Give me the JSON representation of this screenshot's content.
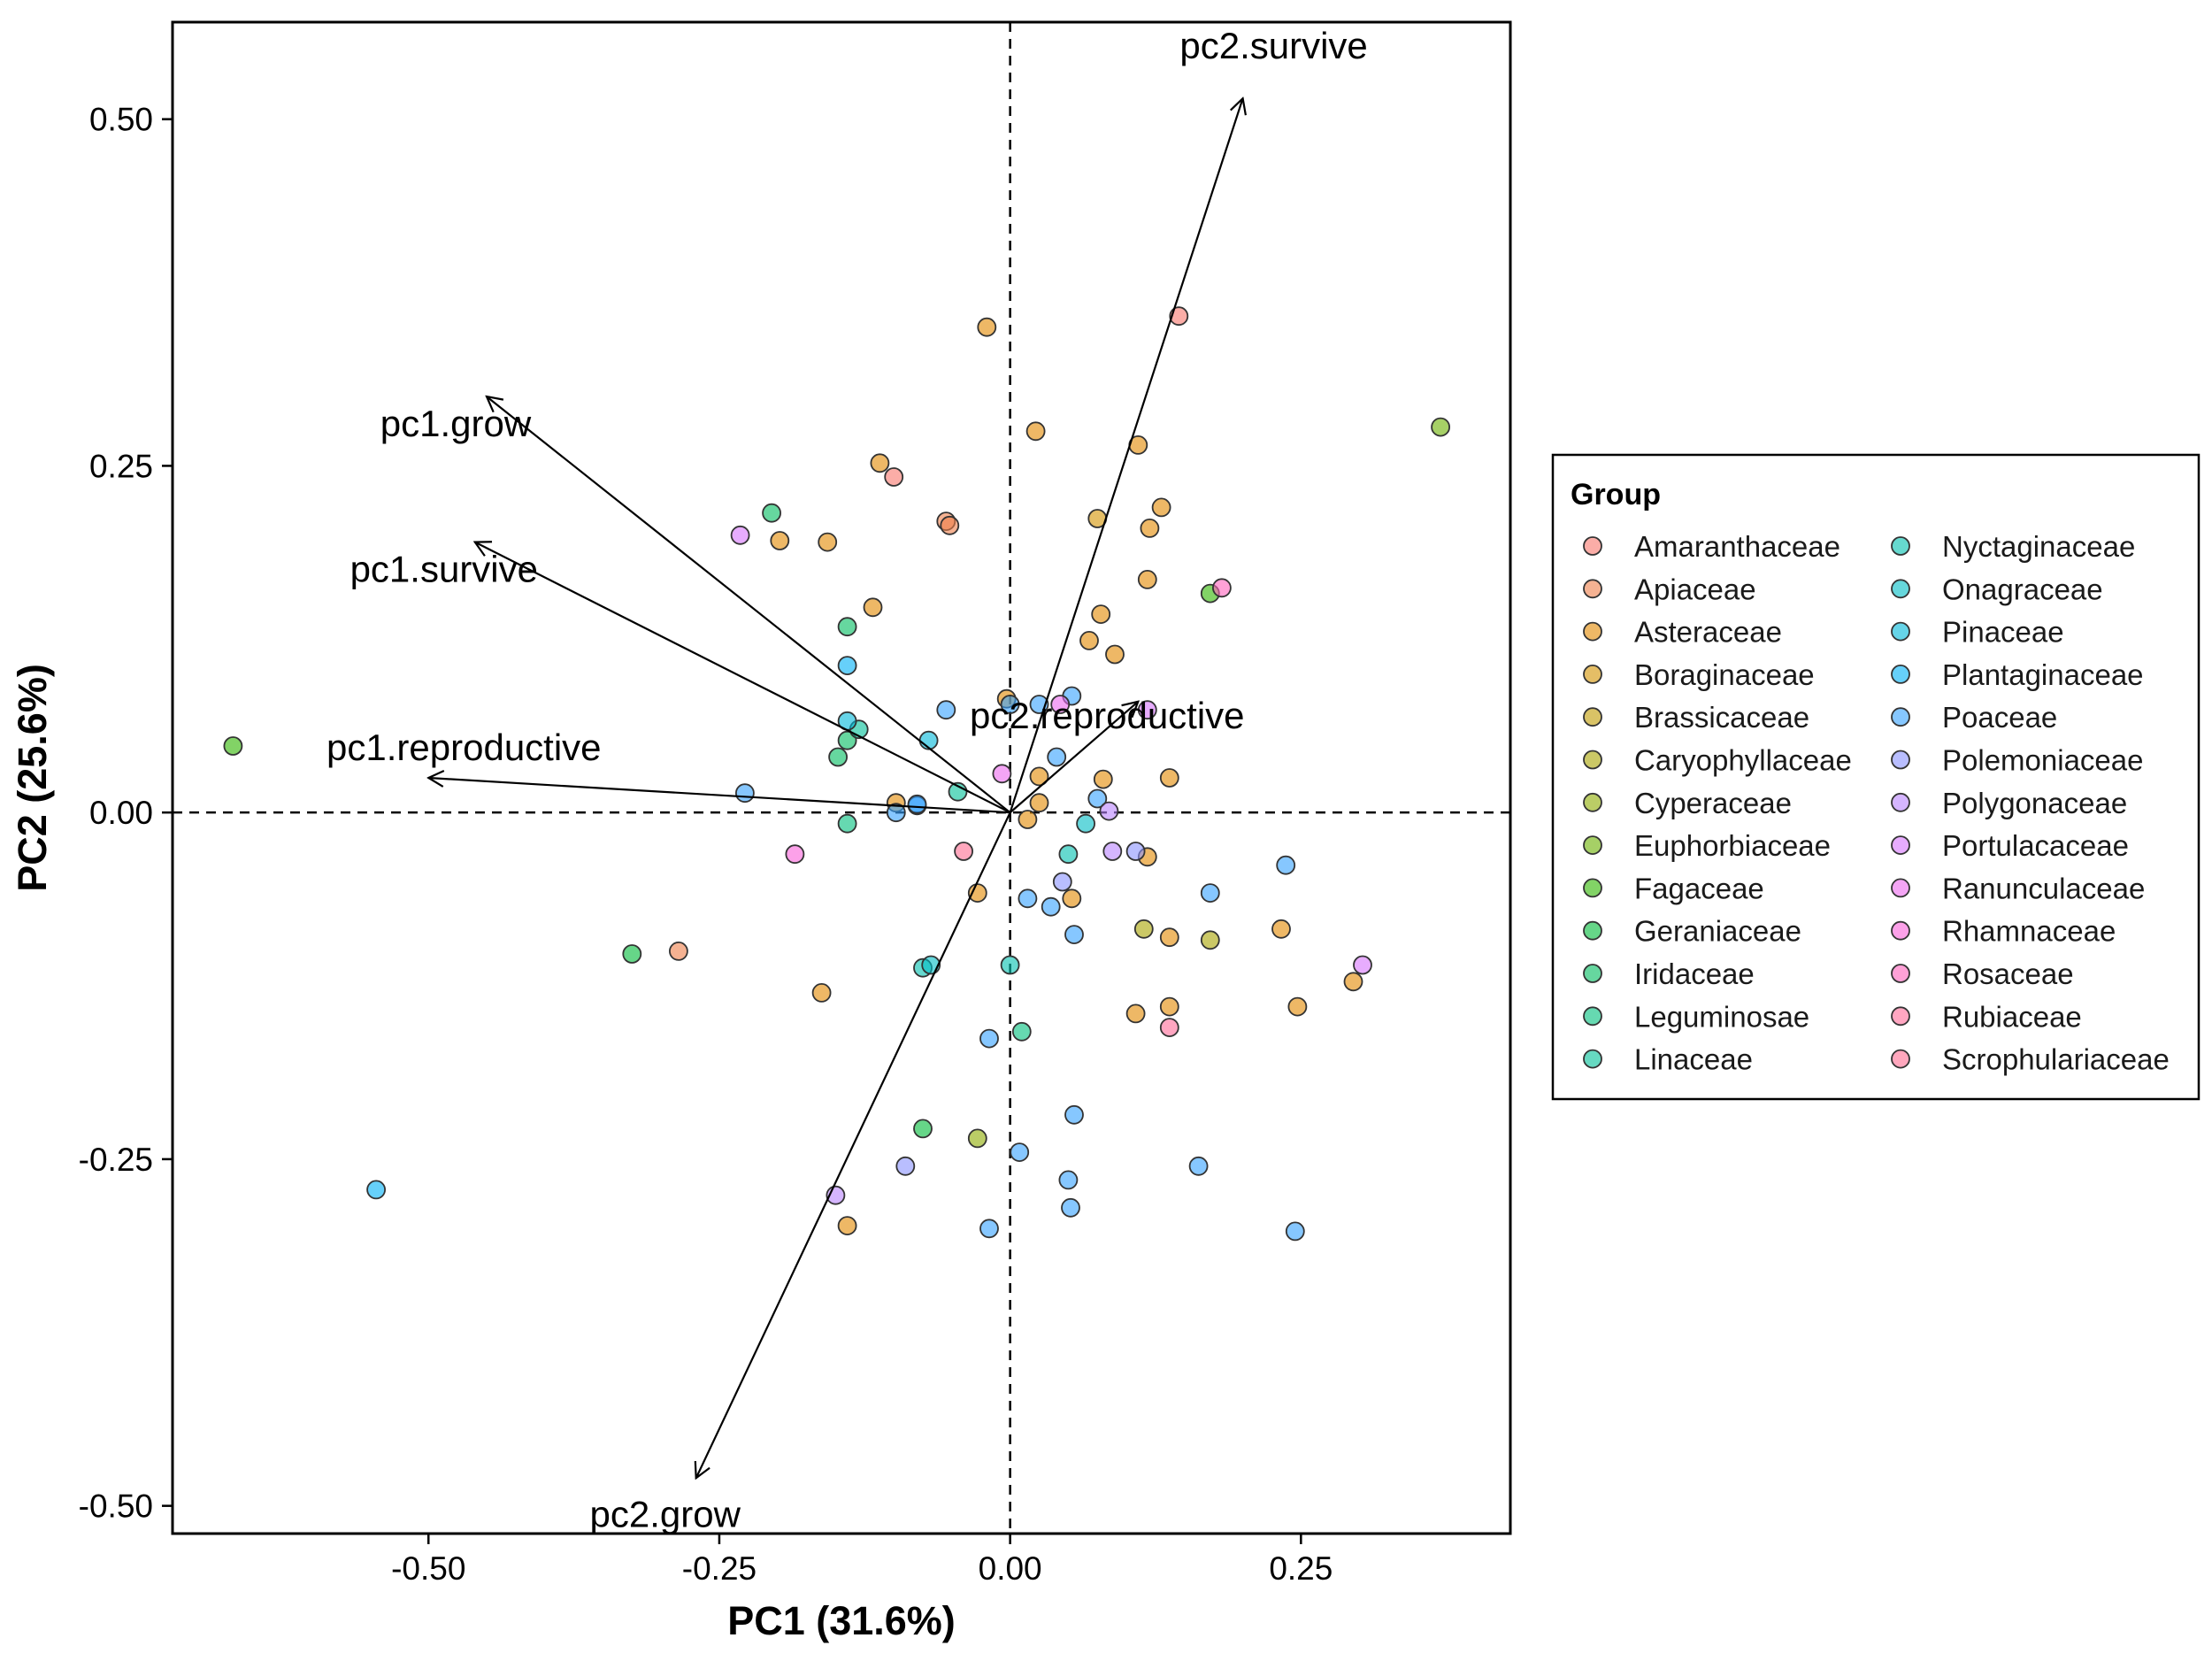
{
  "chart_data": {
    "type": "scatter",
    "xlabel": "PC1 (31.6%)",
    "ylabel": "PC2 (25.6%)",
    "xlim": [
      -0.72,
      0.43
    ],
    "ylim": [
      -0.52,
      0.57
    ],
    "xticks": [
      -0.5,
      -0.25,
      0.0,
      0.25
    ],
    "xtick_labels": [
      "-0.50",
      "-0.25",
      "0.00",
      "0.25"
    ],
    "yticks": [
      -0.5,
      -0.25,
      0.0,
      0.25,
      0.5
    ],
    "ytick_labels": [
      "-0.50",
      "-0.25",
      "0.00",
      "0.25",
      "0.50"
    ],
    "grid": false,
    "reference_lines": {
      "x": 0,
      "y": 0,
      "style": "dashed"
    },
    "legend": {
      "title": "Group",
      "placement": "right",
      "columns": 2,
      "groups": [
        {
          "name": "Amaranthaceae",
          "color": "#F8766D"
        },
        {
          "name": "Apiaceae",
          "color": "#EF7F49"
        },
        {
          "name": "Asteraceae",
          "color": "#E38900"
        },
        {
          "name": "Boraginaceae",
          "color": "#D39200"
        },
        {
          "name": "Brassicaceae",
          "color": "#C09B00"
        },
        {
          "name": "Caryophyllaceae",
          "color": "#A9A400"
        },
        {
          "name": "Cyperaceae",
          "color": "#8EAB00"
        },
        {
          "name": "Euphorbiaceae",
          "color": "#6BB100"
        },
        {
          "name": "Fagaceae",
          "color": "#2FB600"
        },
        {
          "name": "Geraniaceae",
          "color": "#00BA38"
        },
        {
          "name": "Iridaceae",
          "color": "#00BD5F"
        },
        {
          "name": "Leguminosae",
          "color": "#00BF7D"
        },
        {
          "name": "Linaceae",
          "color": "#00C097"
        },
        {
          "name": "Nyctaginaceae",
          "color": "#00C0AF"
        },
        {
          "name": "Onagraceae",
          "color": "#00BDC4"
        },
        {
          "name": "Pinaceae",
          "color": "#00B8D8"
        },
        {
          "name": "Plantaginaceae",
          "color": "#00B0F6"
        },
        {
          "name": "Poaceae",
          "color": "#35A2FF"
        },
        {
          "name": "Polemoniaceae",
          "color": "#8B93FF"
        },
        {
          "name": "Polygonaceae",
          "color": "#B983FF"
        },
        {
          "name": "Portulacaceae",
          "color": "#D774FD"
        },
        {
          "name": "Ranunculaceae",
          "color": "#EC69EF"
        },
        {
          "name": "Rhamnaceae",
          "color": "#FA62DB"
        },
        {
          "name": "Rosaceae",
          "color": "#FF62BC"
        },
        {
          "name": "Rubiaceae",
          "color": "#FF6A98"
        },
        {
          "name": "Scrophulariaceae",
          "color": "#FF6C91"
        }
      ]
    },
    "loadings": [
      {
        "label": "pc2.survive",
        "x": 0.2,
        "y": 0.515
      },
      {
        "label": "pc1.grow",
        "x": -0.45,
        "y": 0.3
      },
      {
        "label": "pc1.survive",
        "x": -0.46,
        "y": 0.195
      },
      {
        "label": "pc1.reproductive",
        "x": -0.5,
        "y": 0.025
      },
      {
        "label": "pc2.reproductive",
        "x": 0.11,
        "y": 0.08
      },
      {
        "label": "pc2.grow",
        "x": -0.27,
        "y": -0.48
      }
    ],
    "points": [
      {
        "group": "Amaranthaceae",
        "x": 0.145,
        "y": 0.358
      },
      {
        "group": "Amaranthaceae",
        "x": -0.1,
        "y": 0.242
      },
      {
        "group": "Apiaceae",
        "x": -0.055,
        "y": 0.21
      },
      {
        "group": "Apiaceae",
        "x": -0.052,
        "y": 0.207
      },
      {
        "group": "Apiaceae",
        "x": -0.285,
        "y": -0.1
      },
      {
        "group": "Asteraceae",
        "x": -0.02,
        "y": 0.35
      },
      {
        "group": "Asteraceae",
        "x": 0.022,
        "y": 0.275
      },
      {
        "group": "Asteraceae",
        "x": -0.112,
        "y": 0.252
      },
      {
        "group": "Asteraceae",
        "x": 0.11,
        "y": 0.265
      },
      {
        "group": "Asteraceae",
        "x": -0.198,
        "y": 0.196
      },
      {
        "group": "Asteraceae",
        "x": -0.157,
        "y": 0.195
      },
      {
        "group": "Asteraceae",
        "x": 0.13,
        "y": 0.22
      },
      {
        "group": "Asteraceae",
        "x": 0.12,
        "y": 0.205
      },
      {
        "group": "Asteraceae",
        "x": 0.118,
        "y": 0.168
      },
      {
        "group": "Asteraceae",
        "x": -0.118,
        "y": 0.148
      },
      {
        "group": "Asteraceae",
        "x": 0.078,
        "y": 0.143
      },
      {
        "group": "Asteraceae",
        "x": 0.068,
        "y": 0.124
      },
      {
        "group": "Asteraceae",
        "x": 0.09,
        "y": 0.114
      },
      {
        "group": "Asteraceae",
        "x": -0.003,
        "y": 0.082
      },
      {
        "group": "Asteraceae",
        "x": 0.025,
        "y": 0.026
      },
      {
        "group": "Asteraceae",
        "x": 0.08,
        "y": 0.024
      },
      {
        "group": "Asteraceae",
        "x": 0.137,
        "y": 0.025
      },
      {
        "group": "Asteraceae",
        "x": -0.098,
        "y": 0.007
      },
      {
        "group": "Asteraceae",
        "x": 0.025,
        "y": 0.007
      },
      {
        "group": "Asteraceae",
        "x": 0.015,
        "y": -0.005
      },
      {
        "group": "Asteraceae",
        "x": 0.118,
        "y": -0.032
      },
      {
        "group": "Asteraceae",
        "x": -0.028,
        "y": -0.058
      },
      {
        "group": "Asteraceae",
        "x": 0.053,
        "y": -0.062
      },
      {
        "group": "Asteraceae",
        "x": 0.137,
        "y": -0.09
      },
      {
        "group": "Asteraceae",
        "x": 0.233,
        "y": -0.084
      },
      {
        "group": "Asteraceae",
        "x": 0.295,
        "y": -0.122
      },
      {
        "group": "Asteraceae",
        "x": -0.162,
        "y": -0.13
      },
      {
        "group": "Asteraceae",
        "x": 0.137,
        "y": -0.14
      },
      {
        "group": "Asteraceae",
        "x": 0.108,
        "y": -0.145
      },
      {
        "group": "Asteraceae",
        "x": 0.247,
        "y": -0.14
      },
      {
        "group": "Asteraceae",
        "x": -0.14,
        "y": -0.298
      },
      {
        "group": "Boraginaceae",
        "x": 0.075,
        "y": 0.212
      },
      {
        "group": "Caryophyllaceae",
        "x": 0.172,
        "y": -0.092
      },
      {
        "group": "Caryophyllaceae",
        "x": 0.115,
        "y": -0.084
      },
      {
        "group": "Cyperaceae",
        "x": -0.028,
        "y": -0.235
      },
      {
        "group": "Euphorbiaceae",
        "x": 0.37,
        "y": 0.278
      },
      {
        "group": "Fagaceae",
        "x": -0.668,
        "y": 0.048
      },
      {
        "group": "Fagaceae",
        "x": 0.172,
        "y": 0.158
      },
      {
        "group": "Geraniaceae",
        "x": -0.325,
        "y": -0.102
      },
      {
        "group": "Geraniaceae",
        "x": -0.075,
        "y": -0.228
      },
      {
        "group": "Iridaceae",
        "x": -0.205,
        "y": 0.216
      },
      {
        "group": "Iridaceae",
        "x": -0.14,
        "y": 0.134
      },
      {
        "group": "Iridaceae",
        "x": -0.148,
        "y": 0.04
      },
      {
        "group": "Iridaceae",
        "x": -0.14,
        "y": 0.052
      },
      {
        "group": "Leguminosae",
        "x": -0.14,
        "y": -0.008
      },
      {
        "group": "Leguminosae",
        "x": 0.01,
        "y": -0.158
      },
      {
        "group": "Linaceae",
        "x": -0.13,
        "y": 0.06
      },
      {
        "group": "Linaceae",
        "x": -0.045,
        "y": 0.015
      },
      {
        "group": "Nyctaginaceae",
        "x": -0.075,
        "y": -0.112
      },
      {
        "group": "Nyctaginaceae",
        "x": 0.0,
        "y": -0.11
      },
      {
        "group": "Nyctaginaceae",
        "x": 0.05,
        "y": -0.03
      },
      {
        "group": "Onagraceae",
        "x": 0.065,
        "y": -0.008
      },
      {
        "group": "Onagraceae",
        "x": -0.068,
        "y": -0.11
      },
      {
        "group": "Pinaceae",
        "x": -0.07,
        "y": 0.052
      },
      {
        "group": "Pinaceae",
        "x": -0.14,
        "y": 0.066
      },
      {
        "group": "Plantaginaceae",
        "x": -0.14,
        "y": 0.106
      },
      {
        "group": "Plantaginaceae",
        "x": -0.545,
        "y": -0.272
      },
      {
        "group": "Poaceae",
        "x": -0.055,
        "y": 0.074
      },
      {
        "group": "Poaceae",
        "x": 0.0,
        "y": 0.078
      },
      {
        "group": "Poaceae",
        "x": 0.025,
        "y": 0.078
      },
      {
        "group": "Poaceae",
        "x": 0.053,
        "y": 0.084
      },
      {
        "group": "Poaceae",
        "x": 0.04,
        "y": 0.04
      },
      {
        "group": "Poaceae",
        "x": 0.075,
        "y": 0.01
      },
      {
        "group": "Poaceae",
        "x": -0.228,
        "y": 0.014
      },
      {
        "group": "Poaceae",
        "x": -0.08,
        "y": 0.005
      },
      {
        "group": "Poaceae",
        "x": -0.098,
        "y": 0.0
      },
      {
        "group": "Poaceae",
        "x": -0.08,
        "y": 0.006
      },
      {
        "group": "Poaceae",
        "x": 0.015,
        "y": -0.062
      },
      {
        "group": "Poaceae",
        "x": 0.035,
        "y": -0.068
      },
      {
        "group": "Poaceae",
        "x": 0.055,
        "y": -0.088
      },
      {
        "group": "Poaceae",
        "x": 0.172,
        "y": -0.058
      },
      {
        "group": "Poaceae",
        "x": 0.237,
        "y": -0.038
      },
      {
        "group": "Poaceae",
        "x": -0.018,
        "y": -0.163
      },
      {
        "group": "Poaceae",
        "x": 0.055,
        "y": -0.218
      },
      {
        "group": "Poaceae",
        "x": 0.008,
        "y": -0.245
      },
      {
        "group": "Poaceae",
        "x": 0.05,
        "y": -0.265
      },
      {
        "group": "Poaceae",
        "x": 0.162,
        "y": -0.255
      },
      {
        "group": "Poaceae",
        "x": 0.052,
        "y": -0.285
      },
      {
        "group": "Poaceae",
        "x": -0.018,
        "y": -0.3
      },
      {
        "group": "Poaceae",
        "x": 0.245,
        "y": -0.302
      },
      {
        "group": "Polemoniaceae",
        "x": 0.045,
        "y": -0.05
      },
      {
        "group": "Polemoniaceae",
        "x": 0.108,
        "y": -0.028
      },
      {
        "group": "Polemoniaceae",
        "x": -0.09,
        "y": -0.255
      },
      {
        "group": "Polygonaceae",
        "x": 0.085,
        "y": 0.001
      },
      {
        "group": "Polygonaceae",
        "x": 0.088,
        "y": -0.028
      },
      {
        "group": "Polygonaceae",
        "x": -0.15,
        "y": -0.276
      },
      {
        "group": "Portulacaceae",
        "x": 0.118,
        "y": 0.074
      },
      {
        "group": "Portulacaceae",
        "x": -0.232,
        "y": 0.2
      },
      {
        "group": "Portulacaceae",
        "x": 0.303,
        "y": -0.11
      },
      {
        "group": "Ranunculaceae",
        "x": 0.043,
        "y": 0.078
      },
      {
        "group": "Ranunculaceae",
        "x": -0.007,
        "y": 0.028
      },
      {
        "group": "Rhamnaceae",
        "x": -0.185,
        "y": -0.03
      },
      {
        "group": "Rosaceae",
        "x": 0.182,
        "y": 0.162
      },
      {
        "group": "Rubiaceae",
        "x": 0.137,
        "y": -0.155
      },
      {
        "group": "Scrophulariaceae",
        "x": -0.04,
        "y": -0.028
      }
    ]
  }
}
